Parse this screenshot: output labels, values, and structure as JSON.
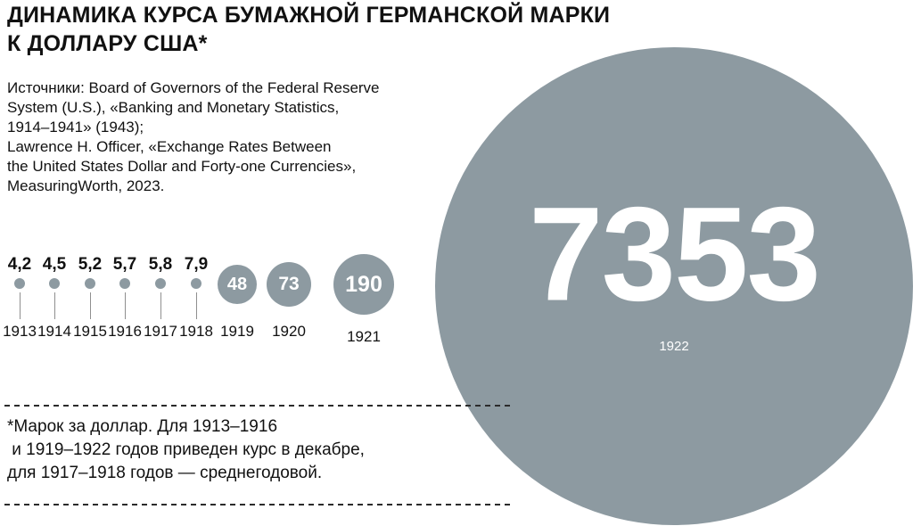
{
  "header": {
    "title": "ДИНАМИКА КУРСА БУМАЖНОЙ ГЕРМАНСКОЙ МАРКИ\nК ДОЛЛАРУ США*",
    "sources": "Источники: Board of Governors of the Federal Reserve\nSystem (U.S.), «Banking and Monetary Statistics,\n1914–1941» (1943);\nLawrence H. Officer, «Exchange Rates Between\nthe United States Dollar and Forty-one Currencies»,\nMeasuringWorth, 2023."
  },
  "footnote": {
    "text": "*Марок за доллар. Для 1913–1916\n и 1919–1922 годов приведен курс в декабре,\nдля 1917–1918 годов — среднегодовой."
  },
  "colors": {
    "bubble": "#8D9AA1",
    "text": "#111111",
    "label_on_bubble": "#FFFFFF"
  },
  "chart_data": {
    "type": "bubble",
    "title": "Динамика курса бумажной германской марки к доллару США",
    "unit": "марок за доллар",
    "categories": [
      "1913",
      "1914",
      "1915",
      "1916",
      "1917",
      "1918",
      "1919",
      "1920",
      "1921",
      "1922"
    ],
    "values": [
      4.2,
      4.5,
      5.2,
      5.7,
      5.8,
      7.9,
      48,
      73,
      190,
      7353
    ],
    "legend": "none",
    "layout": "horizontal row of circles sized by value, years labeled beneath",
    "points": [
      {
        "year": "1913",
        "label": "4,2",
        "value": 4.2
      },
      {
        "year": "1914",
        "label": "4,5",
        "value": 4.5
      },
      {
        "year": "1915",
        "label": "5,2",
        "value": 5.2
      },
      {
        "year": "1916",
        "label": "5,7",
        "value": 5.7
      },
      {
        "year": "1917",
        "label": "5,8",
        "value": 5.8
      },
      {
        "year": "1918",
        "label": "7,9",
        "value": 7.9
      },
      {
        "year": "1919",
        "label": "48",
        "value": 48
      },
      {
        "year": "1920",
        "label": "73",
        "value": 73
      },
      {
        "year": "1921",
        "label": "190",
        "value": 190
      },
      {
        "year": "1922",
        "label": "7353",
        "value": 7353
      }
    ]
  }
}
